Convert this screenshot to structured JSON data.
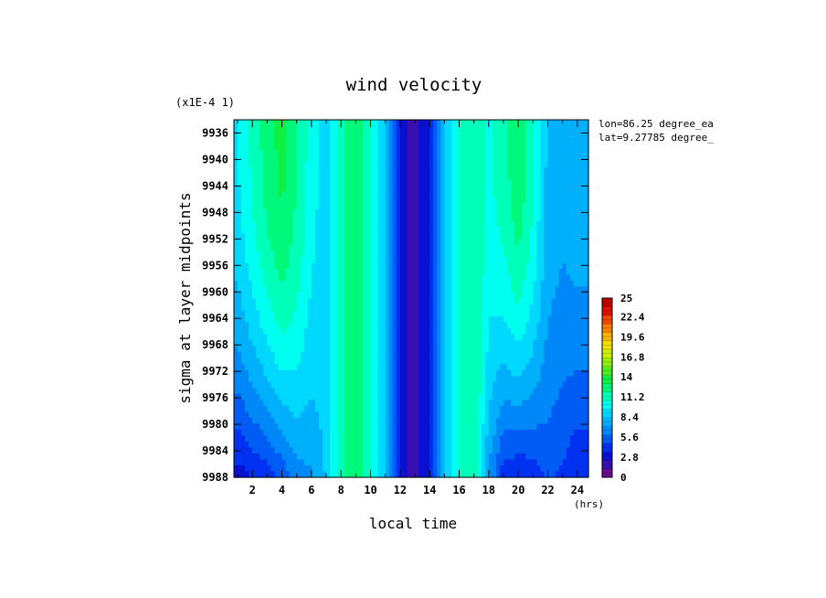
{
  "chart_data": {
    "type": "heatmap",
    "title": "wind velocity",
    "xlabel": "local time",
    "ylabel": "sigma at layer midpoints",
    "x_units": "(hrs)",
    "y_scale_note": "(x1E-4 1)",
    "annotations": [
      "lon=86.25 degree_ea",
      "lat=9.27785 degree_"
    ],
    "xlim": [
      0.75,
      24.75
    ],
    "ylim": [
      9988,
      9934
    ],
    "x_ticks": [
      "2",
      "4",
      "6",
      "8",
      "10",
      "12",
      "14",
      "16",
      "18",
      "20",
      "22",
      "24"
    ],
    "y_ticks": [
      "9936",
      "9940",
      "9944",
      "9948",
      "9952",
      "9956",
      "9960",
      "9964",
      "9968",
      "9972",
      "9976",
      "9980",
      "9984",
      "9988"
    ],
    "colorbar": {
      "range": [
        0,
        25
      ],
      "tick_labels": [
        "0",
        "2.8",
        "5.6",
        "8.4",
        "11.2",
        "14",
        "16.8",
        "19.6",
        "22.4",
        "25"
      ],
      "colors": [
        "#6a0d8f",
        "#3a0fb0",
        "#0a10d0",
        "#0030f0",
        "#005cf5",
        "#0088f8",
        "#00b0fb",
        "#00d8fd",
        "#00fff0",
        "#00ffb8",
        "#00f87a",
        "#10f040",
        "#50f020",
        "#90f010",
        "#c8f000",
        "#f0e000",
        "#f8b400",
        "#f88000",
        "#f04a00",
        "#e01000",
        "#c00000"
      ]
    },
    "x": [
      1,
      2,
      3,
      4,
      5,
      6,
      7,
      8,
      9,
      10,
      11,
      12,
      13,
      14,
      15,
      16,
      17,
      18,
      19,
      20,
      21,
      22,
      23,
      24
    ],
    "y": [
      9936,
      9940,
      9944,
      9948,
      9952,
      9956,
      9960,
      9964,
      9968,
      9972,
      9976,
      9980,
      9984,
      9988
    ],
    "z_top": [
      9.5,
      11.0,
      12.5,
      13.5,
      12.0,
      10.0,
      9.0,
      11.5,
      13.0,
      11.0,
      8.5,
      3.0,
      2.0,
      3.5,
      8.5,
      11.0,
      12.0,
      10.5,
      11.5,
      13.0,
      11.0,
      8.0,
      7.5,
      8.0
    ],
    "z_bottom": [
      3.0,
      3.5,
      4.0,
      5.0,
      6.5,
      7.0,
      8.5,
      11.5,
      13.0,
      11.0,
      8.5,
      3.0,
      2.0,
      3.5,
      8.5,
      11.0,
      12.0,
      7.0,
      4.0,
      3.5,
      4.0,
      5.0,
      4.5,
      3.5
    ]
  }
}
